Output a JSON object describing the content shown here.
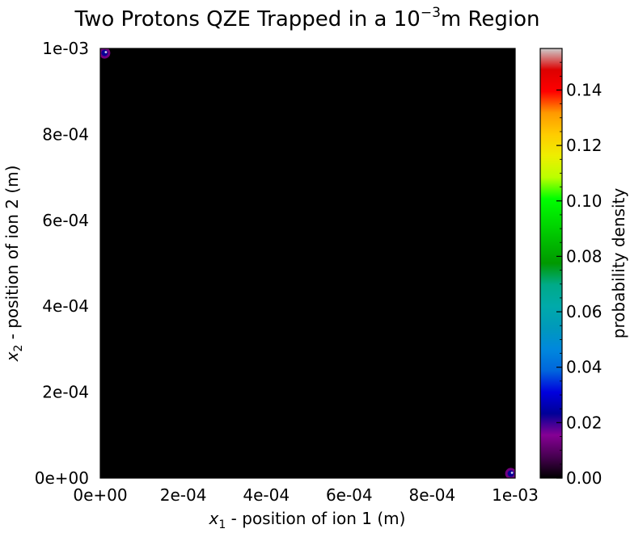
{
  "chart_data": {
    "type": "heatmap",
    "title": {
      "text": "Two Protons QZE Trapped in a 10",
      "superscript": "−3",
      "suffix": "m Region"
    },
    "xlabel": {
      "symbol": "x",
      "subscript": "1",
      "text": " - position of ion 1 (m)"
    },
    "ylabel": {
      "symbol": "x",
      "subscript": "2",
      "text": " - position of ion 2 (m)"
    },
    "xlim": [
      0,
      0.001
    ],
    "ylim": [
      0,
      0.001
    ],
    "x_ticks": [
      {
        "value": 0.0,
        "label": "0e+00"
      },
      {
        "value": 0.0002,
        "label": "2e-04"
      },
      {
        "value": 0.0004,
        "label": "4e-04"
      },
      {
        "value": 0.0006,
        "label": "6e-04"
      },
      {
        "value": 0.0008,
        "label": "8e-04"
      },
      {
        "value": 0.001,
        "label": "1e-03"
      }
    ],
    "y_ticks": [
      {
        "value": 0.0,
        "label": "0e+00"
      },
      {
        "value": 0.0002,
        "label": "2e-04"
      },
      {
        "value": 0.0004,
        "label": "4e-04"
      },
      {
        "value": 0.0006,
        "label": "6e-04"
      },
      {
        "value": 0.0008,
        "label": "8e-04"
      },
      {
        "value": 0.001,
        "label": "1e-03"
      }
    ],
    "colorbar": {
      "label": "probability density",
      "colormap": "nipy_spectral",
      "range": [
        0,
        0.155
      ],
      "ticks": [
        {
          "value": 0.0,
          "label": "0.00"
        },
        {
          "value": 0.02,
          "label": "0.02"
        },
        {
          "value": 0.04,
          "label": "0.04"
        },
        {
          "value": 0.06,
          "label": "0.06"
        },
        {
          "value": 0.08,
          "label": "0.08"
        },
        {
          "value": 0.1,
          "label": "0.10"
        },
        {
          "value": 0.12,
          "label": "0.12"
        },
        {
          "value": 0.14,
          "label": "0.14"
        }
      ],
      "minor_tick_step": 0.005
    },
    "background_value": 0.0,
    "hotspots": [
      {
        "x": 1.05e-05,
        "y": 0.0009895,
        "value": 0.02
      },
      {
        "x": 0.0009895,
        "y": 1.05e-05,
        "value": 0.02
      }
    ],
    "grid": false,
    "legend": "none"
  }
}
